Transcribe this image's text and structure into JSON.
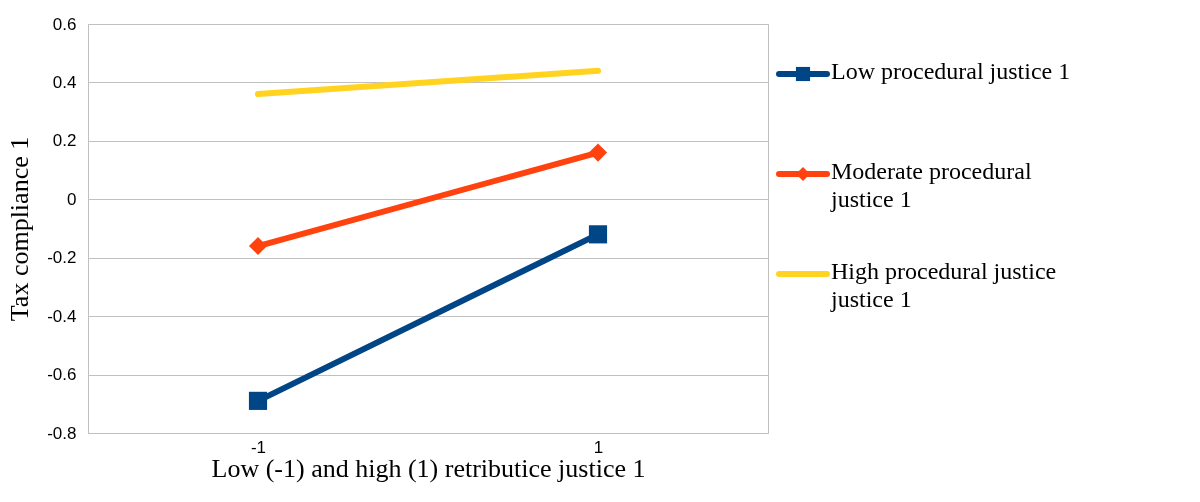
{
  "chart_data": {
    "type": "line",
    "xlabel": "Low (-1) and high (1) retributice justice 1",
    "ylabel": "Tax compliance 1",
    "categories": [
      "-1",
      "1"
    ],
    "series": [
      {
        "name": "Low procedural justice 1",
        "color": "#004586",
        "marker": "square",
        "values": [
          -0.69,
          -0.12
        ]
      },
      {
        "name": "Moderate procedural justice 1",
        "color": "#ff420e",
        "marker": "diamond",
        "values": [
          -0.16,
          0.16
        ]
      },
      {
        "name": "High procedural justice justice 1",
        "color": "#ffd320",
        "marker": "none",
        "values": [
          0.36,
          0.44
        ]
      }
    ],
    "ylim": [
      -0.8,
      0.6
    ],
    "yticks": [
      -0.8,
      -0.6,
      -0.4,
      -0.2,
      0,
      0.2,
      0.4,
      0.6
    ],
    "grid": "y",
    "legend": "right",
    "line_style": "solid"
  }
}
